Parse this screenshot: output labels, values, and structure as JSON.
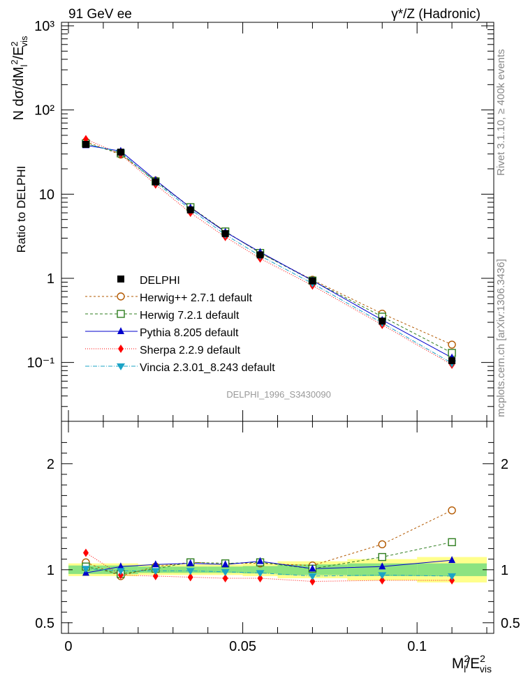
{
  "header": {
    "left_label": "91 GeV ee",
    "right_label": "γ*/Z (Hadronic)"
  },
  "side_labels": {
    "rivet": "Rivet 3.1.10, ≥ 400k events",
    "site": "mcplots.cern.ch [arXiv:1306.3436]"
  },
  "analysis_id": "DELPHI_1996_S3430090",
  "chart_data": {
    "type": "line",
    "title": "91 GeV ee",
    "subtitle": "γ*/Z (Hadronic)",
    "xlabel": "M_l^2/E_vis^2",
    "ylabel": "N dσ/dM_l^2/E_vis^2",
    "ratio_ylabel": "Ratio to DELPHI",
    "xlim": [
      -0.002,
      0.122
    ],
    "ylim": [
      0.02,
      1100
    ],
    "yscale": "log",
    "ratio_ylim": [
      0.4,
      2.4
    ],
    "x_ticks": [
      0,
      0.05,
      0.1
    ],
    "x_tick_labels": [
      "0",
      "0.05",
      "0.1"
    ],
    "y_ticks": [
      0.1,
      1,
      10,
      100,
      1000
    ],
    "y_tick_labels": [
      "10⁻¹",
      "1",
      "10",
      "10²",
      "10³"
    ],
    "ratio_ticks": [
      0.5,
      1,
      2
    ],
    "ratio_tick_labels": [
      "0.5",
      "1",
      "2"
    ],
    "x": [
      0.005,
      0.015,
      0.025,
      0.035,
      0.045,
      0.055,
      0.07,
      0.09,
      0.11
    ],
    "bin_edges": [
      0,
      0.01,
      0.02,
      0.03,
      0.04,
      0.05,
      0.06,
      0.08,
      0.1,
      0.12
    ],
    "data": {
      "name": "DELPHI",
      "values": [
        39,
        31.5,
        14,
        6.5,
        3.4,
        1.9,
        0.93,
        0.31,
        0.105
      ],
      "band_green": [
        0.04,
        0.04,
        0.03,
        0.03,
        0.03,
        0.035,
        0.05,
        0.06,
        0.06
      ],
      "band_yellow": [
        0.06,
        0.06,
        0.05,
        0.05,
        0.05,
        0.06,
        0.08,
        0.1,
        0.12
      ]
    },
    "series": [
      {
        "name": "Herwig++ 2.7.1 default",
        "color": "#b35900",
        "marker": "open-circle",
        "dash": "3,3",
        "values": [
          42,
          29.5,
          14.5,
          7.0,
          3.6,
          2.0,
          0.96,
          0.38,
          0.163
        ]
      },
      {
        "name": "Herwig 7.2.1 default",
        "color": "#2e7d1e",
        "marker": "open-square",
        "dash": "4,3",
        "values": [
          40,
          30.5,
          14.2,
          7.0,
          3.6,
          2.0,
          0.94,
          0.35,
          0.13
        ]
      },
      {
        "name": "Pythia 8.205 default",
        "color": "#0000cc",
        "marker": "triangle-up",
        "dash": "",
        "values": [
          38,
          32.5,
          14.7,
          6.9,
          3.55,
          2.05,
          0.94,
          0.32,
          0.114
        ]
      },
      {
        "name": "Sherpa 2.2.9 default",
        "color": "#ff0000",
        "marker": "diamond",
        "dash": "1,2",
        "values": [
          45,
          29.8,
          13.0,
          6.0,
          3.1,
          1.72,
          0.82,
          0.28,
          0.094
        ]
      },
      {
        "name": "Vincia 2.3.01_8.243 default",
        "color": "#1ba3c6",
        "marker": "triangle-down",
        "dash": "6,2,1,2",
        "values": [
          39.5,
          31.5,
          13.8,
          6.6,
          3.3,
          1.85,
          0.87,
          0.295,
          0.098
        ]
      }
    ],
    "ratios": [
      [
        1.07,
        0.94,
        1.03,
        1.07,
        1.06,
        1.06,
        1.04,
        1.24,
        1.56
      ],
      [
        1.03,
        0.96,
        1.01,
        1.07,
        1.06,
        1.07,
        1.01,
        1.12,
        1.26
      ],
      [
        0.97,
        1.03,
        1.05,
        1.06,
        1.05,
        1.08,
        1.01,
        1.03,
        1.09
      ],
      [
        1.16,
        0.95,
        0.94,
        0.93,
        0.92,
        0.92,
        0.89,
        0.9,
        0.9
      ],
      [
        1.01,
        0.99,
        0.99,
        0.99,
        0.98,
        0.97,
        0.94,
        0.95,
        0.94
      ]
    ]
  }
}
